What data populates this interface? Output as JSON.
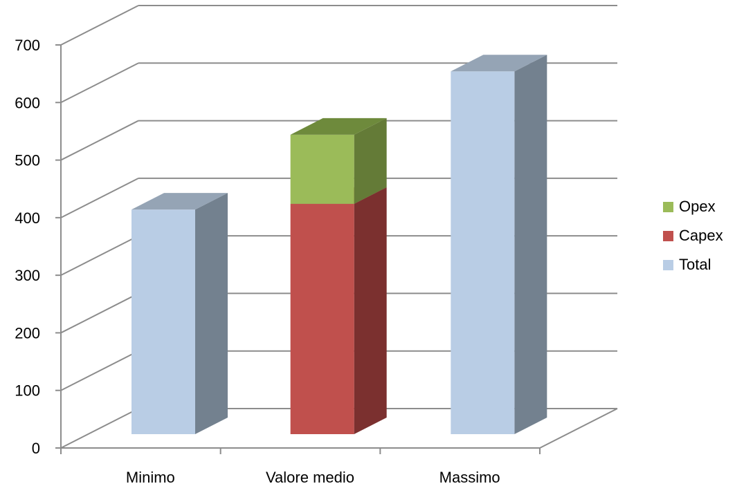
{
  "chart_data": {
    "type": "bar",
    "stacked": true,
    "three_d": true,
    "categories": [
      "Minimo",
      "Valore medio",
      "Massimo"
    ],
    "series": [
      {
        "name": "Total",
        "values": [
          390,
          0,
          630
        ],
        "color": "#b9cde5",
        "side_color": "#73818f",
        "top_color": "#95a4b5"
      },
      {
        "name": "Capex",
        "values": [
          0,
          400,
          0
        ],
        "color": "#c0504d",
        "side_color": "#7b302f",
        "top_color": "#9c3f3c"
      },
      {
        "name": "Opex",
        "values": [
          0,
          120,
          0
        ],
        "color": "#9bbb59",
        "side_color": "#647b37",
        "top_color": "#6e8a3c"
      }
    ],
    "yticks": [
      "0",
      "100",
      "200",
      "300",
      "400",
      "500",
      "600",
      "700"
    ],
    "ylim": [
      0,
      700
    ],
    "grid": true,
    "legend": "right",
    "legend_order": [
      "Opex",
      "Capex",
      "Total"
    ]
  }
}
